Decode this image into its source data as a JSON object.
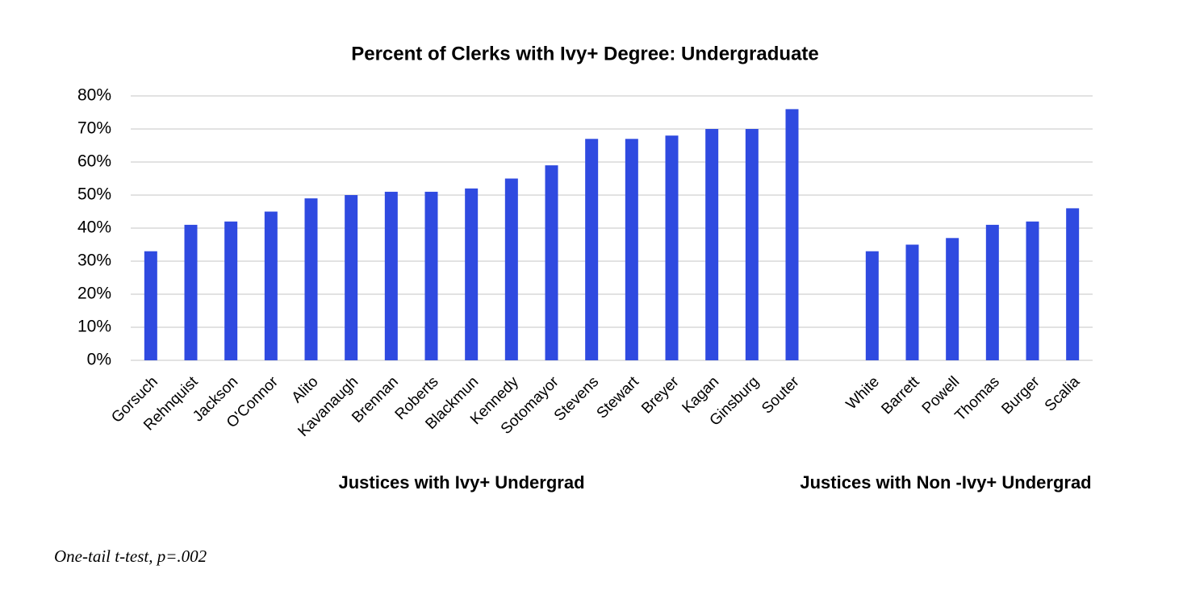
{
  "chart_data": {
    "type": "bar",
    "title": "Percent of Clerks with Ivy+ Degree: Undergraduate",
    "categories": [
      "Gorsuch",
      "Rehnquist",
      "Jackson",
      "O'Connor",
      "Alito",
      "Kavanaugh",
      "Brennan",
      "Roberts",
      "Blackmun",
      "Kennedy",
      "Sotomayor",
      "Stevens",
      "Stewart",
      "Breyer",
      "Kagan",
      "Ginsburg",
      "Souter",
      null,
      "White",
      "Barrett",
      "Powell",
      "Thomas",
      "Burger",
      "Scalia"
    ],
    "values": [
      33,
      41,
      42,
      45,
      49,
      50,
      51,
      51,
      52,
      55,
      59,
      67,
      67,
      68,
      70,
      70,
      76,
      null,
      33,
      35,
      37,
      41,
      42,
      46
    ],
    "color": "#2f4ae0",
    "ylim": [
      0,
      80
    ],
    "yticks": [
      {
        "value": 0,
        "label": "0%"
      },
      {
        "value": 10,
        "label": "10%"
      },
      {
        "value": 20,
        "label": "20%"
      },
      {
        "value": 30,
        "label": "30%"
      },
      {
        "value": 40,
        "label": "40%"
      },
      {
        "value": 50,
        "label": "50%"
      },
      {
        "value": 60,
        "label": "60%"
      },
      {
        "value": 70,
        "label": "70%"
      },
      {
        "value": 80,
        "label": "80%"
      }
    ],
    "grid": true,
    "group_labels": [
      "Justices with Ivy+ Undergrad",
      "Justices with Non -Ivy+ Undergrad"
    ],
    "note": "One-tail t-test, p=.002"
  }
}
